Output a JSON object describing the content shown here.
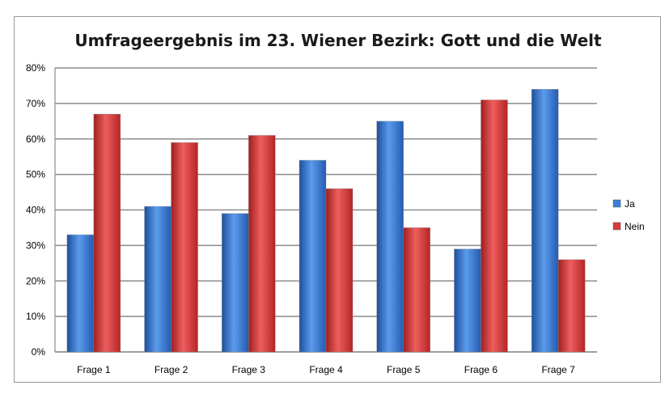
{
  "chart_data": {
    "type": "bar",
    "title": "Umfrageergebnis im 23. Wiener Bezirk: Gott und die Welt",
    "categories": [
      "Frage 1",
      "Frage 2",
      "Frage 3",
      "Frage 4",
      "Frage 5",
      "Frage 6",
      "Frage 7"
    ],
    "series": [
      {
        "name": "Ja",
        "color": "#3b7fd6",
        "values": [
          33,
          41,
          39,
          54,
          65,
          29,
          74
        ]
      },
      {
        "name": "Nein",
        "color": "#d93b3b",
        "values": [
          67,
          59,
          61,
          46,
          35,
          71,
          26
        ]
      }
    ],
    "y_ticks": [
      "0%",
      "10%",
      "20%",
      "30%",
      "40%",
      "50%",
      "60%",
      "70%",
      "80%"
    ],
    "ylim": [
      0,
      80
    ],
    "y_unit": "%",
    "grid": true,
    "legend_position": "right"
  }
}
